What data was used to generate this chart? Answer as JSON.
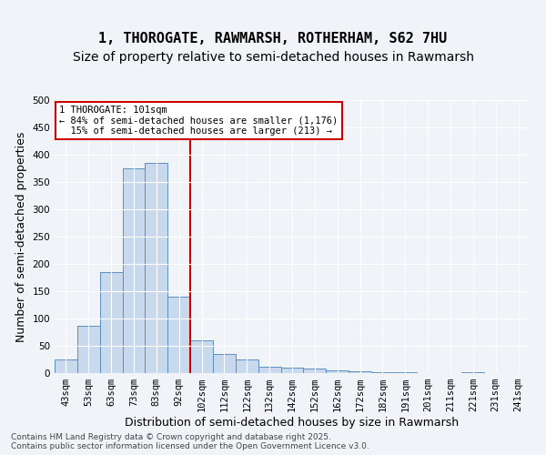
{
  "title": "1, THOROGATE, RAWMARSH, ROTHERHAM, S62 7HU",
  "subtitle": "Size of property relative to semi-detached houses in Rawmarsh",
  "xlabel": "Distribution of semi-detached houses by size in Rawmarsh",
  "ylabel": "Number of semi-detached properties",
  "categories": [
    "43sqm",
    "53sqm",
    "63sqm",
    "73sqm",
    "83sqm",
    "92sqm",
    "102sqm",
    "112sqm",
    "122sqm",
    "132sqm",
    "142sqm",
    "152sqm",
    "162sqm",
    "172sqm",
    "182sqm",
    "191sqm",
    "201sqm",
    "211sqm",
    "221sqm",
    "231sqm",
    "241sqm"
  ],
  "values": [
    25,
    87,
    185,
    375,
    385,
    140,
    60,
    35,
    25,
    12,
    10,
    8,
    5,
    3,
    2,
    1,
    0,
    0,
    1,
    0,
    0
  ],
  "bar_color": "#c9d9ed",
  "bar_edge_color": "#5b8fc0",
  "vline_x_index": 6,
  "vline_color": "#cc0000",
  "annotation_text": "1 THOROGATE: 101sqm\n← 84% of semi-detached houses are smaller (1,176)\n  15% of semi-detached houses are larger (213) →",
  "annotation_box_color": "#cc0000",
  "ylim": [
    0,
    500
  ],
  "yticks": [
    0,
    50,
    100,
    150,
    200,
    250,
    300,
    350,
    400,
    450,
    500
  ],
  "footer_text": "Contains HM Land Registry data © Crown copyright and database right 2025.\nContains public sector information licensed under the Open Government Licence v3.0.",
  "bg_color": "#f0f4f8",
  "plot_bg_color": "#f0f4f8",
  "grid_color": "#ffffff",
  "title_fontsize": 11,
  "subtitle_fontsize": 10,
  "axis_label_fontsize": 9,
  "tick_fontsize": 7.5
}
